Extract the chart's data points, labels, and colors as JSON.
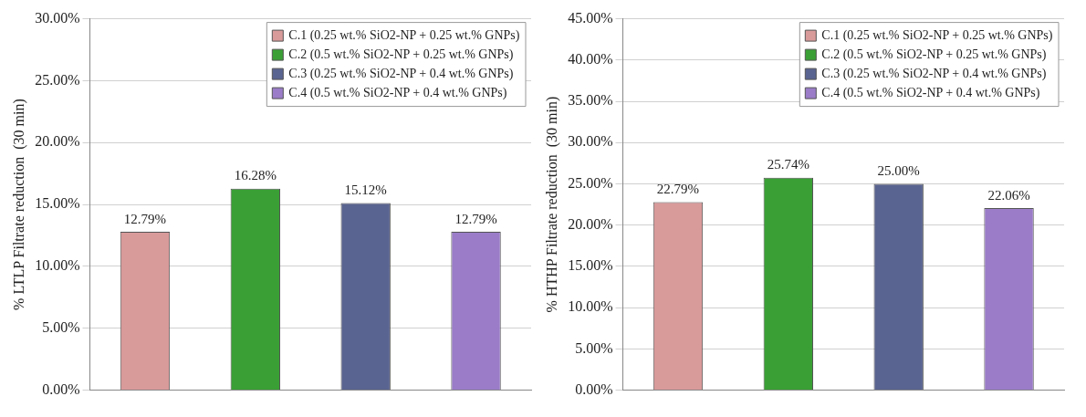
{
  "chart_data": [
    {
      "type": "bar",
      "ylabel": "% LTLP Filtrate reduction  (30 min)",
      "categories": [
        null,
        null,
        null,
        null
      ],
      "series": [
        {
          "name": "C.1 (0.25 wt.% SiO2-NP + 0.25 wt.% GNPs)",
          "color": "#d99a9a",
          "values": [
            12.79,
            null,
            null,
            null
          ],
          "value_labels": [
            "12.79%",
            null,
            null,
            null
          ]
        },
        {
          "name": "C.2 (0.5 wt.% SiO2-NP + 0.25 wt.% GNPs)",
          "color": "#3aa035",
          "values": [
            null,
            16.28,
            null,
            null
          ],
          "value_labels": [
            null,
            "16.28%",
            null,
            null
          ]
        },
        {
          "name": "C.3 (0.25 wt.% SiO2-NP + 0.4 wt.% GNPs)",
          "color": "#5a6490",
          "values": [
            null,
            null,
            15.12,
            null
          ],
          "value_labels": [
            null,
            null,
            "15.12%",
            null
          ]
        },
        {
          "name": "C.4 (0.5 wt.% SiO2-NP + 0.4 wt.% GNPs)",
          "color": "#9a7cc8",
          "values": [
            null,
            null,
            null,
            12.79
          ],
          "value_labels": [
            null,
            null,
            null,
            "12.79%"
          ]
        }
      ],
      "ylim": [
        0,
        30
      ],
      "yticks": [
        {
          "value": 0,
          "label": "0.00%"
        },
        {
          "value": 5,
          "label": "5.00%"
        },
        {
          "value": 10,
          "label": "10.00%"
        },
        {
          "value": 15,
          "label": "15.00%"
        },
        {
          "value": 20,
          "label": "20.00%"
        },
        {
          "value": 25,
          "label": "25.00%"
        },
        {
          "value": 30,
          "label": "30.00%"
        }
      ],
      "grid": "y",
      "legend": "top right"
    },
    {
      "type": "bar",
      "ylabel": "% HTHP Filtrate reduction  (30 min)",
      "categories": [
        null,
        null,
        null,
        null
      ],
      "series": [
        {
          "name": "C.1 (0.25 wt.% SiO2-NP + 0.25 wt.% GNPs)",
          "color": "#d99a9a",
          "values": [
            22.79,
            null,
            null,
            null
          ],
          "value_labels": [
            "22.79%",
            null,
            null,
            null
          ]
        },
        {
          "name": "C.2 (0.5 wt.% SiO2-NP + 0.25 wt.% GNPs)",
          "color": "#3aa035",
          "values": [
            null,
            25.74,
            null,
            null
          ],
          "value_labels": [
            null,
            "25.74%",
            null,
            null
          ]
        },
        {
          "name": "C.3 (0.25 wt.% SiO2-NP + 0.4 wt.% GNPs)",
          "color": "#5a6490",
          "values": [
            null,
            null,
            25.0,
            null
          ],
          "value_labels": [
            null,
            null,
            "25.00%",
            null
          ]
        },
        {
          "name": "C.4 (0.5 wt.% SiO2-NP + 0.4 wt.% GNPs)",
          "color": "#9a7cc8",
          "values": [
            null,
            null,
            null,
            22.06
          ],
          "value_labels": [
            null,
            null,
            null,
            "22.06%"
          ]
        }
      ],
      "ylim": [
        0,
        45
      ],
      "yticks": [
        {
          "value": 0,
          "label": "0.00%"
        },
        {
          "value": 5,
          "label": "5.00%"
        },
        {
          "value": 10,
          "label": "10.00%"
        },
        {
          "value": 15,
          "label": "15.00%"
        },
        {
          "value": 20,
          "label": "20.00%"
        },
        {
          "value": 25,
          "label": "25.00%"
        },
        {
          "value": 30,
          "label": "30.00%"
        },
        {
          "value": 35,
          "label": "35.00%"
        },
        {
          "value": 40,
          "label": "40.00%"
        },
        {
          "value": 45,
          "label": "45.00%"
        }
      ],
      "grid": "y",
      "legend": "top right"
    }
  ]
}
